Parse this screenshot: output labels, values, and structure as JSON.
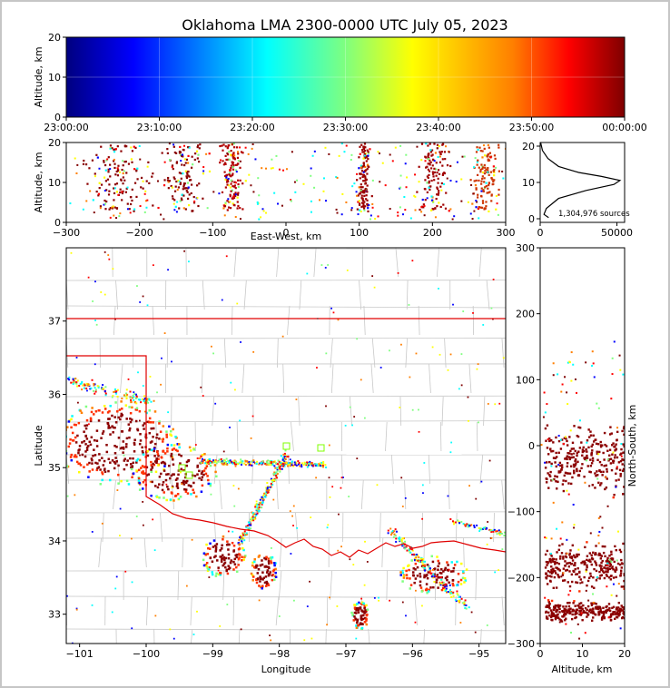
{
  "title": "Oklahoma LMA 2300-0000 UTC July 05, 2023",
  "chart_data": [
    {
      "type": "scatter",
      "panel": "time-altitude",
      "ylabel": "Altitude, km",
      "ylim": [
        0,
        20
      ],
      "yticks": [
        "0",
        "10",
        "20"
      ],
      "xticks": [
        "23:00:00",
        "23:10:00",
        "23:20:00",
        "23:30:00",
        "23:40:00",
        "23:50:00",
        "00:00:00"
      ],
      "color_by": "time",
      "colormap": [
        "#00007f",
        "#0000ff",
        "#00ffff",
        "#7fff7f",
        "#ffff00",
        "#ff7f00",
        "#ff0000",
        "#7f0000"
      ]
    },
    {
      "type": "scatter",
      "panel": "east-west-altitude",
      "xlabel": "East-West, km",
      "ylabel": "Altitude, km",
      "xlim": [
        -300,
        300
      ],
      "ylim": [
        0,
        20
      ],
      "xticks": [
        "−300",
        "−200",
        "−100",
        "0",
        "100",
        "200",
        "300"
      ],
      "yticks": [
        "0",
        "10",
        "20"
      ]
    },
    {
      "type": "line",
      "panel": "altitude-histogram",
      "xlim": [
        0,
        55000
      ],
      "ylim": [
        0,
        20
      ],
      "xticks": [
        "0",
        "50000"
      ],
      "yticks": [
        "0",
        "10",
        "20"
      ],
      "annotation": "1,304,976 sources",
      "x": [
        5500,
        2500,
        4000,
        12000,
        30000,
        48000,
        52000,
        40000,
        25000,
        12000,
        5000,
        1500,
        300
      ],
      "y": [
        1.2,
        2.0,
        3.5,
        6.0,
        8.0,
        9.5,
        10.5,
        11.5,
        12.5,
        14.0,
        16.0,
        18.0,
        20.0
      ]
    },
    {
      "type": "scatter",
      "panel": "plan-view-map",
      "xlabel": "Longitude",
      "ylabel": "Latitude",
      "xlim": [
        -101.2,
        -94.6
      ],
      "ylim": [
        32.6,
        38.0
      ],
      "xticks": [
        "−101",
        "−100",
        "−99",
        "−98",
        "−97",
        "−96",
        "−95"
      ],
      "yticks": [
        "33",
        "34",
        "35",
        "36",
        "37"
      ],
      "clusters": [
        {
          "lon": -100.45,
          "lat": 35.35,
          "rx": 0.7,
          "ry": 0.45
        },
        {
          "lon": -99.6,
          "lat": 34.95,
          "rx": 0.5,
          "ry": 0.3
        },
        {
          "lon": -98.85,
          "lat": 33.8,
          "rx": 0.25,
          "ry": 0.22
        },
        {
          "lon": -98.25,
          "lat": 33.6,
          "rx": 0.15,
          "ry": 0.2
        },
        {
          "lon": -95.7,
          "lat": 33.55,
          "rx": 0.4,
          "ry": 0.2
        },
        {
          "lon": -96.8,
          "lat": 33.0,
          "rx": 0.1,
          "ry": 0.15
        }
      ]
    },
    {
      "type": "scatter",
      "panel": "altitude-north-south",
      "xlabel": "Altitude, km",
      "ylabel": "North-South, km",
      "xlim": [
        0,
        20
      ],
      "ylim": [
        -300,
        300
      ],
      "xticks": [
        "0",
        "10",
        "20"
      ],
      "yticks": [
        "−300",
        "−200",
        "−100",
        "0",
        "100",
        "200",
        "300"
      ]
    }
  ]
}
